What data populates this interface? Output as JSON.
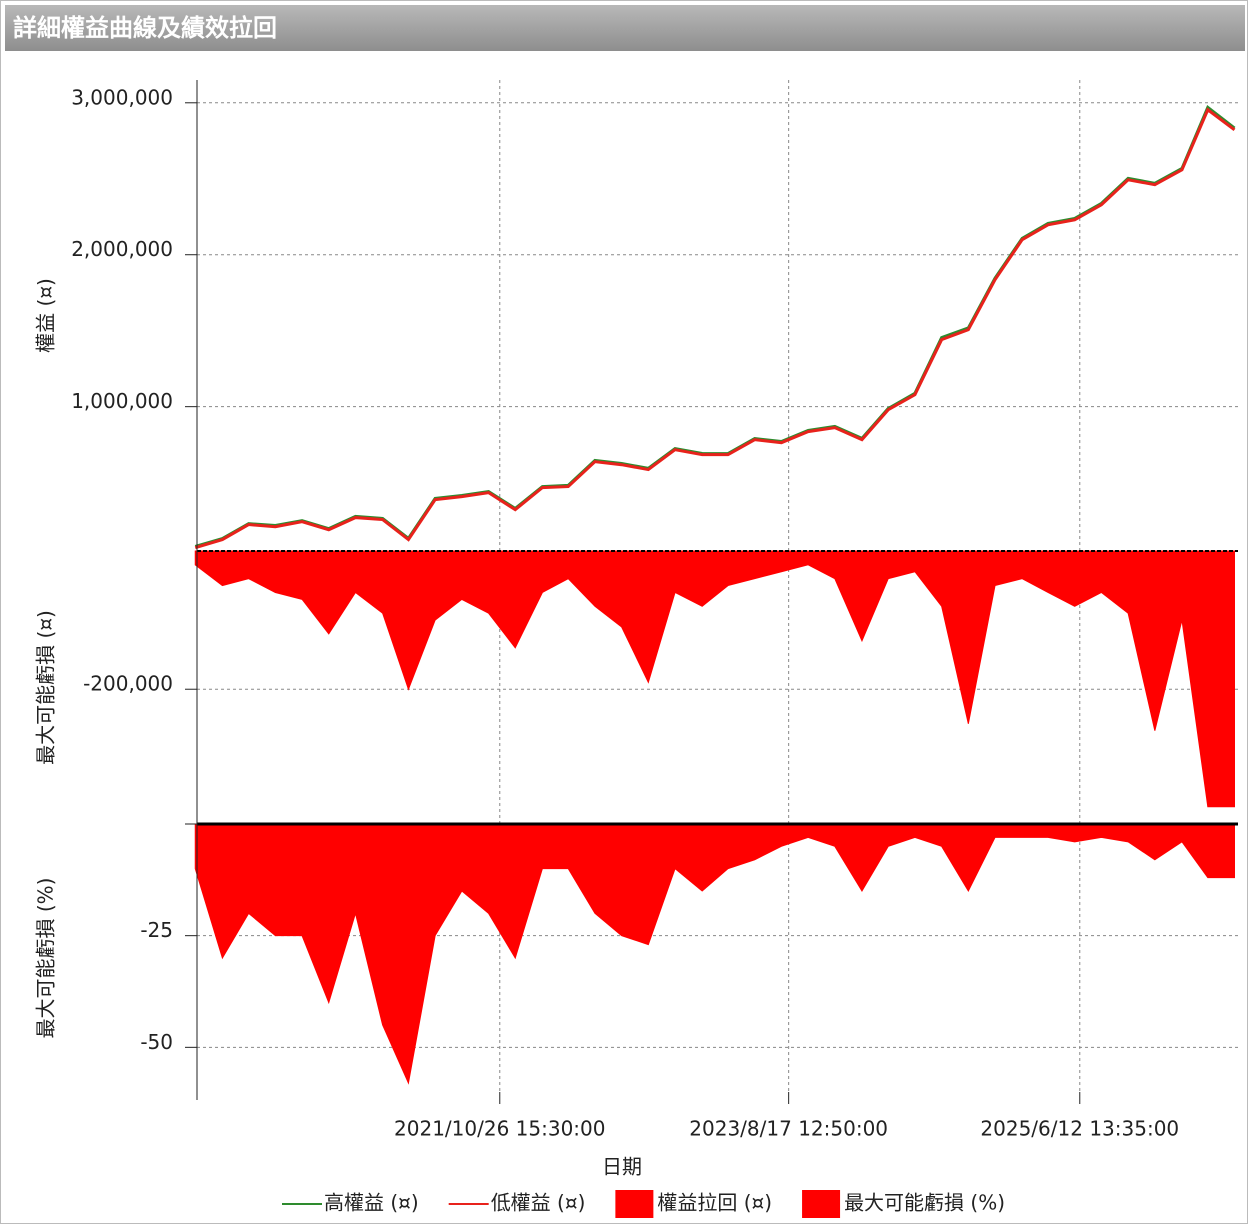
{
  "title": "詳細權益曲線及績效拉回",
  "chart_data": [
    {
      "type": "line",
      "ylabel": "權益 (¤)",
      "x": [
        "2019/12/1",
        "2020/2/1",
        "2020/4/1",
        "2020/6/1",
        "2020/8/1",
        "2020/10/1",
        "2020/12/1",
        "2021/2/1",
        "2021/4/1",
        "2021/6/1",
        "2021/8/1",
        "2021/10/1",
        "2021/12/1",
        "2022/2/1",
        "2022/4/1",
        "2022/6/1",
        "2022/8/1",
        "2022/10/1",
        "2022/12/1",
        "2023/2/1",
        "2023/4/1",
        "2023/6/1",
        "2023/8/1",
        "2023/10/1",
        "2023/12/1",
        "2024/2/1",
        "2024/4/1",
        "2024/6/1",
        "2024/8/1",
        "2024/10/1",
        "2024/12/1",
        "2025/2/1",
        "2025/4/1",
        "2025/6/1",
        "2025/8/1",
        "2025/10/1",
        "2025/12/1",
        "2026/2/1",
        "2026/4/1",
        "2026/6/1"
      ],
      "series": [
        {
          "name": "高權益 (¤)",
          "color": "#2e8b2e",
          "values": [
            80000,
            132000,
            230000,
            218000,
            250000,
            197000,
            278000,
            264000,
            133000,
            396000,
            415000,
            441000,
            330000,
            474000,
            482000,
            646000,
            626000,
            594000,
            724000,
            692000,
            691000,
            790000,
            771000,
            843000,
            870000,
            791000,
            988000,
            1088000,
            1455000,
            1518000,
            1846000,
            2108000,
            2206000,
            2239000,
            2338000,
            2503000,
            2470000,
            2568000,
            2970000,
            2834000
          ]
        },
        {
          "name": "低權益 (¤)",
          "color": "#e8221c",
          "values": [
            72000,
            125000,
            224000,
            210000,
            243000,
            190000,
            270000,
            257000,
            125000,
            388000,
            408000,
            434000,
            322000,
            467000,
            474000,
            638000,
            618000,
            586000,
            717000,
            684000,
            684000,
            783000,
            763000,
            836000,
            862000,
            783000,
            980000,
            1079000,
            1441000,
            1507000,
            1836000,
            2099000,
            2197000,
            2230000,
            2329000,
            2493000,
            2461000,
            2559000,
            2954000,
            2822000
          ]
        }
      ],
      "ylim": [
        50000,
        3150000
      ],
      "yticks": [
        {
          "value": 1000000,
          "label": "1,000,000"
        },
        {
          "value": 2000000,
          "label": "2,000,000"
        },
        {
          "value": 3000000,
          "label": "3,000,000"
        }
      ],
      "grid": true
    },
    {
      "type": "area",
      "ylabel": "最大可能虧損 (¤)",
      "x": [
        "2019/12/1",
        "2020/2/1",
        "2020/4/1",
        "2020/6/1",
        "2020/8/1",
        "2020/10/1",
        "2020/12/1",
        "2021/2/1",
        "2021/4/1",
        "2021/6/1",
        "2021/8/1",
        "2021/10/1",
        "2021/12/1",
        "2022/2/1",
        "2022/4/1",
        "2022/6/1",
        "2022/8/1",
        "2022/10/1",
        "2022/12/1",
        "2023/2/1",
        "2023/4/1",
        "2023/6/1",
        "2023/8/1",
        "2023/10/1",
        "2023/12/1",
        "2024/2/1",
        "2024/4/1",
        "2024/6/1",
        "2024/8/1",
        "2024/10/1",
        "2024/12/1",
        "2025/2/1",
        "2025/4/1",
        "2025/6/1",
        "2025/8/1",
        "2025/10/1",
        "2025/12/1",
        "2026/2/1",
        "2026/4/1",
        "2026/6/1"
      ],
      "series": [
        {
          "name": "權益拉回 (¤)",
          "color": "#ff0000",
          "values": [
            -20000,
            -50000,
            -40000,
            -60000,
            -70000,
            -120000,
            -60000,
            -90000,
            -200000,
            -100000,
            -70000,
            -90000,
            -140000,
            -60000,
            -40000,
            -80000,
            -110000,
            -190000,
            -60000,
            -80000,
            -50000,
            -40000,
            -30000,
            -20000,
            -40000,
            -130000,
            -40000,
            -30000,
            -80000,
            -250000,
            -50000,
            -40000,
            -60000,
            -80000,
            -60000,
            -90000,
            -260000,
            -100000,
            -370000,
            -370000
          ]
        }
      ],
      "ylim": [
        -395000,
        0
      ],
      "yticks": [
        {
          "value": -200000,
          "label": "-200,000"
        }
      ],
      "grid": true
    },
    {
      "type": "area",
      "ylabel": "最大可能虧損 (%)",
      "xlabel": "日期",
      "x": [
        "2019/12/1",
        "2020/2/1",
        "2020/4/1",
        "2020/6/1",
        "2020/8/1",
        "2020/10/1",
        "2020/12/1",
        "2021/2/1",
        "2021/4/1",
        "2021/6/1",
        "2021/8/1",
        "2021/10/1",
        "2021/12/1",
        "2022/2/1",
        "2022/4/1",
        "2022/6/1",
        "2022/8/1",
        "2022/10/1",
        "2022/12/1",
        "2023/2/1",
        "2023/4/1",
        "2023/6/1",
        "2023/8/1",
        "2023/10/1",
        "2023/12/1",
        "2024/2/1",
        "2024/4/1",
        "2024/6/1",
        "2024/8/1",
        "2024/10/1",
        "2024/12/1",
        "2025/2/1",
        "2025/4/1",
        "2025/6/1",
        "2025/8/1",
        "2025/10/1",
        "2025/12/1",
        "2026/2/1",
        "2026/4/1",
        "2026/6/1"
      ],
      "series": [
        {
          "name": "最大可能虧損 (%)",
          "color": "#ff0000",
          "values": [
            -10,
            -30,
            -20,
            -25,
            -25,
            -40,
            -20,
            -45,
            -58,
            -25,
            -15,
            -20,
            -30,
            -10,
            -10,
            -20,
            -25,
            -27,
            -10,
            -15,
            -10,
            -8,
            -5,
            -3,
            -5,
            -15,
            -5,
            -3,
            -5,
            -15,
            -3,
            -3,
            -3,
            -4,
            -3,
            -4,
            -8,
            -4,
            -12,
            -12
          ]
        }
      ],
      "ylim": [
        -60,
        0
      ],
      "yticks": [
        -50,
        -25
      ],
      "xlim": [
        "2019/12/5",
        "2026/6/9"
      ],
      "xticks": [
        "2021/10/26 15:30:00",
        "2023/8/17 12:50:00",
        "2025/6/12 13:35:00"
      ],
      "grid": true
    }
  ]
}
